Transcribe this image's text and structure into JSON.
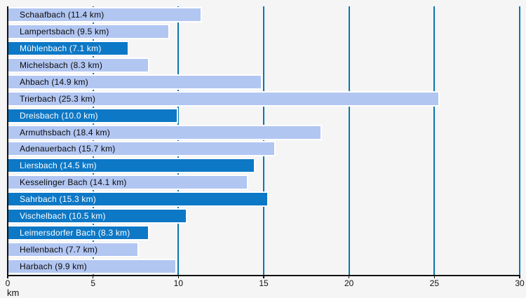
{
  "chart_data": {
    "type": "bar",
    "orientation": "horizontal",
    "title": "",
    "xlabel": "km",
    "ylabel": "",
    "xlim": [
      0,
      30
    ],
    "x_ticks": [
      0,
      5,
      10,
      15,
      20,
      25,
      30
    ],
    "grid": true,
    "legend": false,
    "categories": [
      "Schaafbach",
      "Lampertsbach",
      "Mühlenbach",
      "Michelsbach",
      "Ahbach",
      "Trierbach",
      "Dreisbach",
      "Armuthsbach",
      "Adenauerbach",
      "Liersbach",
      "Kesselinger Bach",
      "Sahrbach",
      "Vischelbach",
      "Leimersdorfer Bach",
      "Hellenbach",
      "Harbach"
    ],
    "values": [
      11.4,
      9.5,
      7.1,
      8.3,
      14.9,
      25.3,
      10.0,
      18.4,
      15.7,
      14.5,
      14.1,
      15.3,
      10.5,
      8.3,
      7.7,
      9.9
    ],
    "bar_labels": [
      "Schaafbach (11.4 km)",
      "Lampertsbach (9.5 km)",
      "Mühlenbach (7.1 km)",
      "Michelsbach (8.3 km)",
      "Ahbach (14.9 km)",
      "Trierbach (25.3 km)",
      "Dreisbach (10.0 km)",
      "Armuthsbach (18.4 km)",
      "Adenauerbach (15.7 km)",
      "Liersbach (14.5 km)",
      "Kesselinger Bach (14.1 km)",
      "Sahrbach (15.3 km)",
      "Vischelbach (10.5 km)",
      "Leimersdorfer Bach (8.3 km)",
      "Hellenbach (7.7 km)",
      "Harbach (9.9 km)"
    ],
    "bar_styles": [
      "light",
      "light",
      "dark",
      "light",
      "light",
      "light",
      "dark",
      "light",
      "light",
      "dark",
      "light",
      "dark",
      "dark",
      "dark",
      "light",
      "light"
    ],
    "colors": {
      "light_bar": "#b2c6f2",
      "dark_bar": "#0d78c6",
      "light_bar_text": "#0a0a0a",
      "dark_bar_text": "#ffffff",
      "bar_edge": "#ffffff",
      "gridline": "#0878ad",
      "axis": "#111111",
      "background": "#f5f5f6"
    }
  }
}
